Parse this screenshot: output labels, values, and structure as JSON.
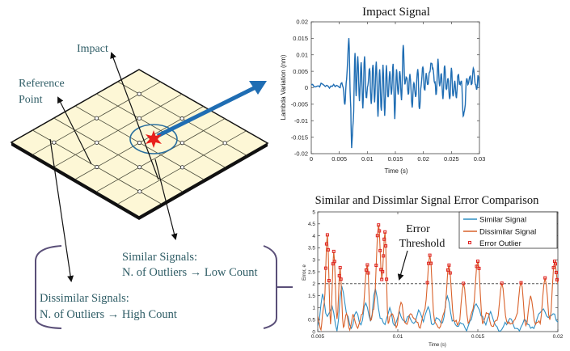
{
  "diagram": {
    "labels": {
      "impact": "Impact",
      "reference_line1": "Reference",
      "reference_line2": "Point",
      "similar_line1": "Similar Signals:",
      "similar_line2": "N. of Outliers →  Low Count",
      "dissimilar_line1": "Dissimilar Signals:",
      "dissimilar_line2": "N. of Outliers →  High Count"
    },
    "colors": {
      "plate": "#fdf7d6",
      "grid_line": "#4a4a3a",
      "text": "#2f5d66",
      "impact_star": "#e8201c",
      "arrow_blue": "#1f6db3",
      "circle": "#2a6f9e",
      "bracket": "#5a4f78"
    }
  },
  "chart_data": [
    {
      "type": "line",
      "title": "Impact Signal",
      "xlabel": "Time (s)",
      "ylabel": "Lambda Variation (nm)",
      "xlim": [
        0,
        0.03
      ],
      "ylim": [
        -0.02,
        0.02
      ],
      "xticks": [
        0,
        0.005,
        0.01,
        0.015,
        0.02,
        0.025,
        0.03
      ],
      "xtick_labels": [
        "0",
        "0.005",
        "0.01",
        "0.015",
        "0.02",
        "0.025",
        "0.03"
      ],
      "yticks": [
        0.02,
        0.015,
        0.01,
        0.005,
        0,
        -0.005,
        -0.01,
        -0.015,
        -0.02
      ],
      "ytick_labels": [
        "0.02",
        "0.015",
        "0.01",
        "0.005",
        "0",
        "-0.005",
        "-0.01",
        "-0.015",
        "-0.02"
      ],
      "grid": false,
      "series": [
        {
          "name": "Impact Signal",
          "color": "#1f6db3",
          "x": [
            0,
            0.001,
            0.002,
            0.003,
            0.004,
            0.005,
            0.0056,
            0.006,
            0.0063,
            0.0067,
            0.007,
            0.0072,
            0.0075,
            0.0078,
            0.008,
            0.0083,
            0.0086,
            0.0089,
            0.0092,
            0.0095,
            0.0098,
            0.0101,
            0.0104,
            0.0107,
            0.011,
            0.0113,
            0.0116,
            0.0119,
            0.0122,
            0.0125,
            0.0128,
            0.0131,
            0.0134,
            0.0137,
            0.014,
            0.0143,
            0.0146,
            0.0149,
            0.0152,
            0.0155,
            0.0158,
            0.0161,
            0.0164,
            0.0167,
            0.017,
            0.0173,
            0.0176,
            0.018,
            0.0183,
            0.0186,
            0.019,
            0.0193,
            0.0196,
            0.0199,
            0.0202,
            0.0205,
            0.0208,
            0.0211,
            0.0214,
            0.0217,
            0.022,
            0.0223,
            0.0226,
            0.0229,
            0.0232,
            0.0235,
            0.0238,
            0.0241,
            0.0244,
            0.0247,
            0.025,
            0.0253,
            0.0256,
            0.0259,
            0.0262,
            0.0265,
            0.0268,
            0.0271,
            0.0274,
            0.0277,
            0.028,
            0.0283,
            0.0286,
            0.0289,
            0.0292,
            0.0295,
            0.0298,
            0.03
          ],
          "y": [
            0.001,
            0.0005,
            0.001,
            0.0003,
            0.0008,
            0.0005,
            0.001,
            -0.005,
            0.003,
            0.015,
            -0.004,
            -0.018,
            -0.01,
            0.011,
            -0.002,
            0.009,
            -0.004,
            0.008,
            -0.006,
            0.009,
            -0.003,
            0.001,
            0.006,
            -0.005,
            0.007,
            -0.004,
            0.0085,
            -0.009,
            0.006,
            -0.007,
            0.007,
            -0.008,
            0.0065,
            -0.003,
            0.005,
            -0.002,
            0.007,
            -0.009,
            0.006,
            -0.002,
            0.005,
            -0.004,
            0.013,
            0.001,
            0.003,
            -0.002,
            0.004,
            -0.006,
            0.002,
            -0.003,
            0.006,
            -0.007,
            0.001,
            0.0065,
            -0.001,
            0.004,
            0.001,
            0.005,
            0.0075,
            0.006,
            0.002,
            -0.002,
            0.0085,
            0.0,
            0.004,
            -0.003,
            0.007,
            -0.001,
            0.003,
            -0.004,
            0.006,
            -0.003,
            0.002,
            -0.003,
            0.004,
            0.001,
            0.0025,
            -0.009,
            -0.006,
            0.003,
            0.001,
            0.004,
            0.001,
            0.006,
            0.002,
            -0.001,
            0.004,
            0.0
          ]
        }
      ]
    },
    {
      "type": "line",
      "title": "Similar and Dissimlar Signal Error Comparison",
      "xlabel": "Time (s)",
      "ylabel": "Error, e",
      "xlim": [
        0.005,
        0.02
      ],
      "ylim": [
        0,
        5
      ],
      "xticks": [
        0.005,
        0.01,
        0.015,
        0.02
      ],
      "xtick_labels": [
        "0.005",
        "0.01",
        "0.015",
        "0.02"
      ],
      "yticks": [
        5,
        4.5,
        4,
        3.5,
        3,
        2.5,
        2,
        1.5,
        1,
        0.5,
        0
      ],
      "ytick_labels": [
        "5",
        "4.5",
        "4",
        "3.5",
        "3",
        "2.5",
        "2",
        "1.5",
        "1",
        "0.5",
        "0"
      ],
      "grid": false,
      "legend": {
        "position": "top-right",
        "entries": [
          "Similar Signal",
          "Dissimilar Signal",
          "Error Outlier"
        ]
      },
      "threshold": {
        "value": 2,
        "label_line1": "Error",
        "label_line2": "Threshold"
      },
      "series": [
        {
          "name": "Similar Signal",
          "color": "#2f8fc4",
          "x": [
            0.005,
            0.0053,
            0.0056,
            0.0059,
            0.0062,
            0.0065,
            0.0068,
            0.0071,
            0.0074,
            0.0077,
            0.008,
            0.0083,
            0.0086,
            0.0089,
            0.0092,
            0.0095,
            0.0098,
            0.0101,
            0.0104,
            0.0107,
            0.011,
            0.0113,
            0.0116,
            0.0119,
            0.0122,
            0.0125,
            0.0128,
            0.0131,
            0.0134,
            0.0137,
            0.014,
            0.0143,
            0.0146,
            0.0149,
            0.0152,
            0.0155,
            0.0158,
            0.0161,
            0.0164,
            0.0167,
            0.017,
            0.0173,
            0.0176,
            0.0179,
            0.0182,
            0.0185,
            0.0188,
            0.0191,
            0.0194,
            0.0197,
            0.02
          ],
          "y": [
            0.2,
            1.5,
            0.6,
            1.1,
            0.1,
            1.9,
            0.8,
            0.2,
            0.9,
            0.3,
            1.2,
            0.4,
            1.8,
            0.6,
            0.3,
            1.0,
            0.2,
            0.8,
            0.4,
            0.7,
            0.3,
            0.9,
            0.5,
            1.0,
            0.2,
            0.6,
            0.3,
            1.5,
            0.5,
            0.2,
            0.4,
            0.1,
            0.6,
            1.2,
            0.7,
            0.3,
            0.9,
            0.2,
            0.1,
            0.3,
            0.6,
            0.2,
            0.1,
            0.5,
            0.2,
            0.1,
            0.8,
            0.9,
            0.5,
            0.8,
            0.4
          ]
        },
        {
          "name": "Dissimilar Signal",
          "color": "#d9622b",
          "x": [
            0.005,
            0.0052,
            0.0054,
            0.0056,
            0.0058,
            0.006,
            0.0062,
            0.0064,
            0.0066,
            0.0068,
            0.007,
            0.0072,
            0.0075,
            0.0078,
            0.0081,
            0.0083,
            0.0085,
            0.0088,
            0.009,
            0.0092,
            0.0094,
            0.0096,
            0.0099,
            0.0102,
            0.0105,
            0.0108,
            0.0111,
            0.0114,
            0.0117,
            0.012,
            0.0123,
            0.0126,
            0.0129,
            0.0132,
            0.0135,
            0.0138,
            0.0141,
            0.0144,
            0.0147,
            0.015,
            0.0153,
            0.0156,
            0.0159,
            0.0162,
            0.0165,
            0.0168,
            0.0171,
            0.0174,
            0.0177,
            0.018,
            0.0183,
            0.0186,
            0.0189,
            0.0192,
            0.0195,
            0.0198,
            0.02
          ],
          "y": [
            0.6,
            0.1,
            1.2,
            4.0,
            0.3,
            3.3,
            0.5,
            2.6,
            0.2,
            0.8,
            0.1,
            0.7,
            0.2,
            0.8,
            2.8,
            0.4,
            1.0,
            4.5,
            2.2,
            4.1,
            0.3,
            0.8,
            0.2,
            1.2,
            0.3,
            0.7,
            0.5,
            0.2,
            1.0,
            3.2,
            0.4,
            0.2,
            0.8,
            2.8,
            0.5,
            0.3,
            2.0,
            0.4,
            0.9,
            3.0,
            0.3,
            0.8,
            0.2,
            0.5,
            2.0,
            0.4,
            0.3,
            0.6,
            2.1,
            0.2,
            1.5,
            0.3,
            0.4,
            2.3,
            0.5,
            3.0,
            2.0
          ]
        }
      ]
    }
  ]
}
